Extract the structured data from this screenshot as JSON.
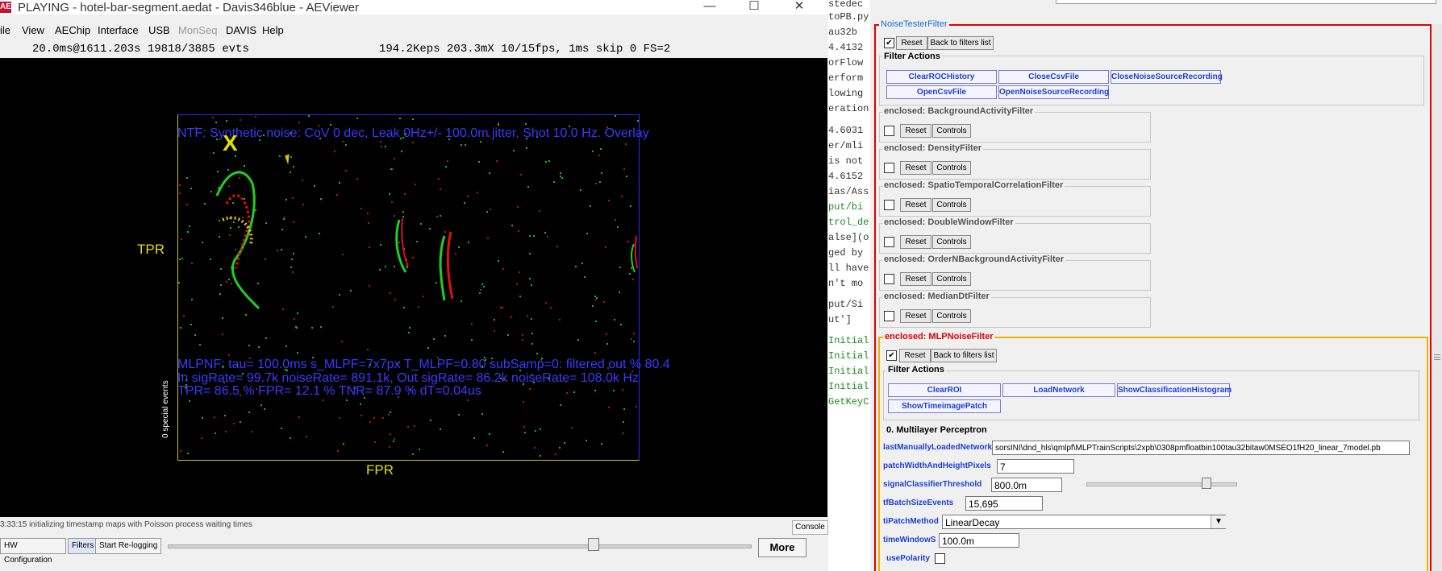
{
  "window": {
    "title": "PLAYING - hotel-bar-segment.aedat - Davis346blue - AEViewer",
    "icon_letter": "AE",
    "minimize": "—",
    "maximize": "☐",
    "close": "✕"
  },
  "menu": {
    "items": [
      "ile",
      "View",
      "AEChip",
      "Interface",
      "USB",
      "MonSeq",
      "DAVIS",
      "Help"
    ]
  },
  "status": {
    "left": "20.0ms@1611.203s 19818/3885 evts",
    "right": "194.2Keps 203.3mX 10/15fps, 1ms skip 0 FS=2"
  },
  "canvas": {
    "ntf_overlay": "NTF: Synthetic noise: CoV 0 dec, Leak 0Hz+/- 100.0m jitter, Shot  10.0 Hz. Overlay",
    "tpr_label": "TPR",
    "fpr_label": "FPR",
    "special_events": "0 special events",
    "marker": "X",
    "mlp_line1": "MLPNF: tau= 100.0ms s_MLPF=7x7px T_MLPF=0.80 subSamp=0: filtered out %  80.4",
    "mlp_line2": "In sigRate= 99.7k noiseRate= 891.1k, Out sigRate= 86.2k noiseRate= 108.0k Hz",
    "mlp_line3": "TPR= 86.5 % FPR= 12.1 % TNR= 87.9 % dT=0.04us"
  },
  "log": {
    "line": "3:33:15 initializing timestamp maps with Poisson process waiting times",
    "console": "Console"
  },
  "bottom": {
    "hw_config": "HW Configuration",
    "filters": "Filters",
    "start_relogging": "Start Re-logging",
    "slider_fraction": 0.73,
    "more": "More"
  },
  "code": {
    "lines": [
      {
        "text": "stedec",
        "color": "#333333"
      },
      {
        "text": "toPB.py",
        "color": "#333333"
      },
      {
        "text": "au32b",
        "color": "#333333"
      },
      {
        "text": "4.4132",
        "color": "#333333"
      },
      {
        "text": "orFlow",
        "color": "#333333"
      },
      {
        "text": "erform",
        "color": "#333333"
      },
      {
        "text": "lowing",
        "color": "#333333"
      },
      {
        "text": "eration",
        "color": "#333333"
      },
      {
        "text": "4.6031",
        "color": "#333333"
      },
      {
        "text": "er/mli",
        "color": "#333333"
      },
      {
        "text": "is not",
        "color": "#333333"
      },
      {
        "text": "4.6152",
        "color": "#333333"
      },
      {
        "text": "ias/Ass",
        "color": "#333333"
      },
      {
        "text": "put/bi",
        "color": "#1e8a1e"
      },
      {
        "text": "trol_de",
        "color": "#1e8a1e"
      },
      {
        "text": "alse](o",
        "color": "#333333"
      },
      {
        "text": "ged by",
        "color": "#333333"
      },
      {
        "text": "ll have",
        "color": "#333333"
      },
      {
        "text": "n't mo",
        "color": "#333333"
      },
      {
        "text": "put/Si",
        "color": "#333333"
      },
      {
        "text": "ut']",
        "color": "#333333"
      },
      {
        "text": "Initial",
        "color": "#1e8a1e"
      },
      {
        "text": "Initial",
        "color": "#1e8a1e"
      },
      {
        "text": "Initial",
        "color": "#1e8a1e"
      },
      {
        "text": "Initial",
        "color": "#1e8a1e"
      },
      {
        "text": "GetKeyC",
        "color": "#1e8a1e"
      }
    ]
  },
  "panel": {
    "ntf_title": "NoiseTesterFilter",
    "ntf_checked": "✔",
    "reset": "Reset",
    "back_to_filters": "Back to filters list",
    "filter_actions": "Filter Actions",
    "ntf_actions": [
      "ClearROCHistory",
      "CloseCsvFile",
      "CloseNoiseSourceRecording",
      "OpenCsvFile",
      "OpenNoiseSourceRecording"
    ],
    "controls": "Controls",
    "enclosed": [
      "enclosed: BackgroundActivityFilter",
      "enclosed: DensityFilter",
      "enclosed: SpatioTemporalCorrelationFilter",
      "enclosed: DoubleWindowFilter",
      "enclosed: OrderNBackgroundActivityFilter",
      "enclosed: MedianDtFilter"
    ],
    "mlp_title": "enclosed: MLPNoiseFilter",
    "mlp_checked": "✔",
    "mlp_actions": [
      "ClearROI",
      "LoadNetwork",
      "ShowClassificationHistogram",
      "ShowTimeimagePatch"
    ],
    "mlp_section": "0. Multilayer Perceptron",
    "params": {
      "network_label": "lastManuallyLoadedNetwork",
      "network_value": "sorsINI\\dnd_hls\\qmlpf\\MLPTrainScripts\\2xpb\\0308pmfloatbin100tau32bitaw0MSEO1fH20_linear_7model.pb",
      "patch_label": "patchWidthAndHeightPixels",
      "patch_value": "7",
      "threshold_label": "signalClassifierThreshold",
      "threshold_value": "800.0m",
      "threshold_fraction": 0.8,
      "batch_label": "tfBatchSizeEvents",
      "batch_value": "15,695",
      "patchmethod_label": "tiPatchMethod",
      "patchmethod_value": "LinearDecay",
      "timewindow_label": "timeWindowS",
      "timewindow_value": "100.0m",
      "polarity_label": "usePolarity"
    }
  }
}
